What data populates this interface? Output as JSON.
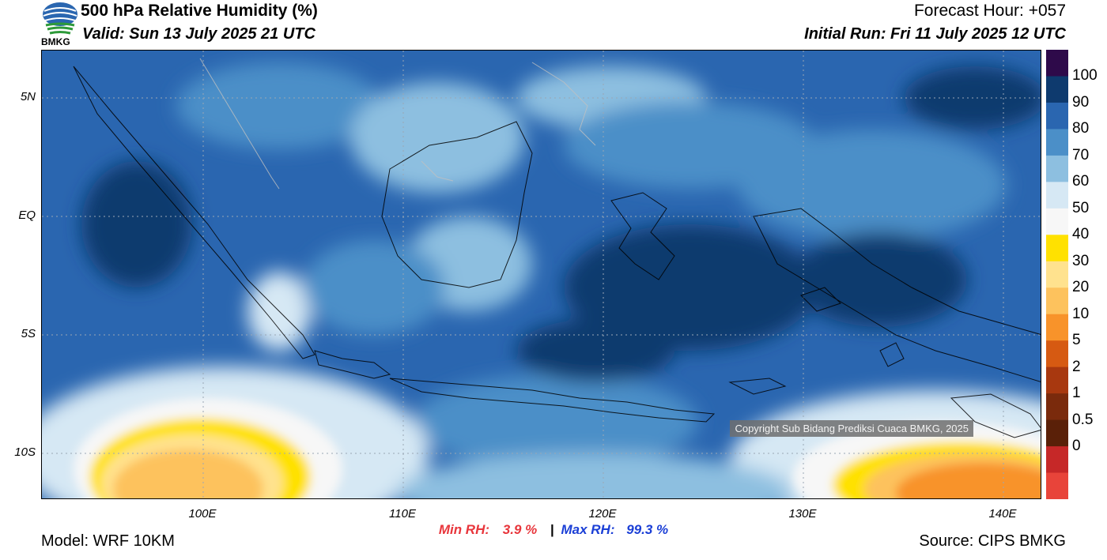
{
  "header": {
    "title": "500 hPa Relative Humidity (%)",
    "valid": "Valid: Sun 13 July 2025 21 UTC",
    "forecast_hour": "Forecast Hour: +057",
    "initial_run": "Initial Run: Fri 11 July 2025 12 UTC"
  },
  "logo": {
    "text": "BMKG"
  },
  "map": {
    "y_axis_labels": [
      "5N",
      "EQ",
      "5S",
      "10S"
    ],
    "x_axis_labels": [
      "100E",
      "110E",
      "120E",
      "130E",
      "140E"
    ],
    "copyright": "Copyright Sub Bidang Prediksi Cuaca BMKG, 2025"
  },
  "colorbar": {
    "labels": [
      "100",
      "90",
      "80",
      "70",
      "60",
      "50",
      "40",
      "30",
      "20",
      "10",
      "5",
      "2",
      "1",
      "0.5",
      "0"
    ],
    "colors": [
      "#2e0a4a",
      "#0e3a6e",
      "#2a66b0",
      "#4b8fc8",
      "#8dbfe0",
      "#d6e8f4",
      "#f7f7f7",
      "#ffe100",
      "#ffe28e",
      "#fdc25d",
      "#f8932a",
      "#d65a12",
      "#a8380f",
      "#7a2a0c",
      "#5a2008",
      "#c62828",
      "#e8443a"
    ]
  },
  "stats": {
    "min_label": "Min RH:",
    "min_value": "3.9 %",
    "separator": "|",
    "max_label": "Max RH:",
    "max_value": "99.3 %"
  },
  "footer": {
    "model": "Model: WRF 10KM",
    "source": "Source: CIPS BMKG"
  }
}
